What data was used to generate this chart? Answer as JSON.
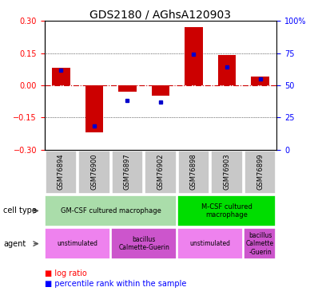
{
  "title": "GDS2180 / AGhsA120903",
  "samples": [
    "GSM76894",
    "GSM76900",
    "GSM76897",
    "GSM76902",
    "GSM76898",
    "GSM76903",
    "GSM76899"
  ],
  "log_ratio": [
    0.08,
    -0.22,
    -0.03,
    -0.05,
    0.27,
    0.14,
    0.04
  ],
  "percentile": [
    0.62,
    0.18,
    0.38,
    0.37,
    0.74,
    0.64,
    0.55
  ],
  "ylim": [
    -0.3,
    0.3
  ],
  "right_ylim": [
    0,
    100
  ],
  "right_yticks": [
    0,
    25,
    50,
    75,
    100
  ],
  "right_yticklabels": [
    "0",
    "25",
    "50",
    "75",
    "100%"
  ],
  "left_yticks": [
    -0.3,
    -0.15,
    0,
    0.15,
    0.3
  ],
  "hline_vals": [
    -0.15,
    0,
    0.15
  ],
  "bar_color": "#cc0000",
  "dot_color": "#0000cc",
  "zero_line_color": "#cc0000",
  "gsm_bg": "#c8c8c8",
  "cell_types": [
    {
      "label": "GM-CSF cultured macrophage",
      "start": 0,
      "end": 4,
      "color": "#aaddaa"
    },
    {
      "label": "M-CSF cultured\nmacrophage",
      "start": 4,
      "end": 7,
      "color": "#00dd00"
    }
  ],
  "agents": [
    {
      "label": "unstimulated",
      "start": 0,
      "end": 2,
      "color": "#ee82ee"
    },
    {
      "label": "bacillus\nCalmette-Guerin",
      "start": 2,
      "end": 4,
      "color": "#cc55cc"
    },
    {
      "label": "unstimulated",
      "start": 4,
      "end": 6,
      "color": "#ee82ee"
    },
    {
      "label": "bacillus\nCalmette\n-Guerin",
      "start": 6,
      "end": 7,
      "color": "#cc55cc"
    }
  ],
  "title_fontsize": 10,
  "tick_fontsize": 7,
  "bar_width": 0.55
}
